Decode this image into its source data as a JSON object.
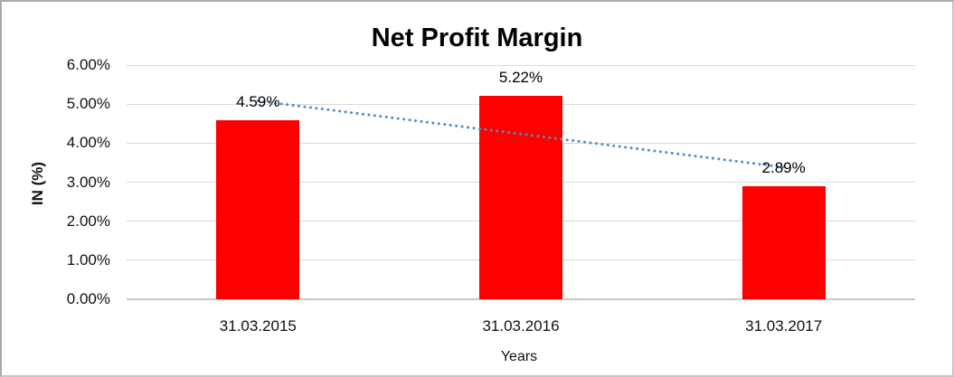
{
  "chart_data": {
    "type": "bar",
    "title": "Net Profit Margin",
    "xlabel": "Years",
    "ylabel": "IN (%)",
    "categories": [
      "31.03.2015",
      "31.03.2016",
      "31.03.2017"
    ],
    "values": [
      4.59,
      5.22,
      2.89
    ],
    "value_labels": [
      "4.59%",
      "5.22%",
      "2.89%"
    ],
    "ylim": [
      0,
      6
    ],
    "ytick_labels": [
      "0.00%",
      "1.00%",
      "2.00%",
      "3.00%",
      "4.00%",
      "5.00%",
      "6.00%"
    ],
    "grid": true,
    "legend": false,
    "bar_color": "#ff0000",
    "gridline_color": "#d9d9d9",
    "trendline": {
      "type": "linear",
      "style": "dotted",
      "color": "#4f8bc9"
    }
  }
}
